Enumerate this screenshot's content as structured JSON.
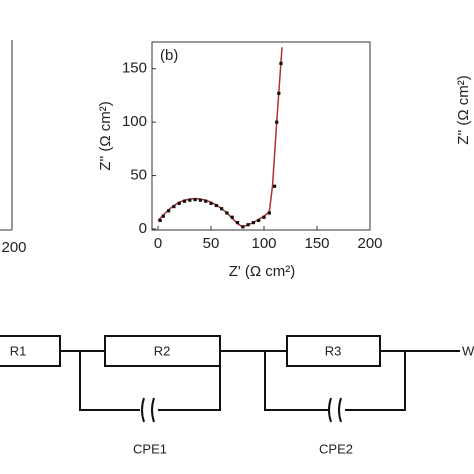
{
  "chart_data": {
    "type": "scatter",
    "panel_label": "(b)",
    "x_label": "Z' (Ω cm²)",
    "y_label": "Z'' (Ω cm²)",
    "xlim": [
      0,
      200
    ],
    "ylim": [
      0,
      175
    ],
    "xticks": [
      0,
      50,
      100,
      150,
      200
    ],
    "yticks": [
      0,
      50,
      100,
      150
    ],
    "points": {
      "color": "#111111",
      "x": [
        2,
        5,
        10,
        15,
        20,
        25,
        30,
        35,
        40,
        45,
        50,
        55,
        60,
        65,
        70,
        75,
        80,
        85,
        90,
        95,
        100,
        105,
        110,
        112,
        114,
        116
      ],
      "y": [
        8,
        12,
        17,
        21,
        24,
        26,
        27,
        27.5,
        27,
        26,
        24,
        22,
        19,
        15,
        11,
        6,
        2,
        4,
        6,
        8,
        11,
        15,
        40,
        100,
        127,
        155
      ]
    },
    "fit": {
      "color": "#b03030",
      "x": [
        0,
        5,
        10,
        15,
        20,
        25,
        30,
        35,
        40,
        45,
        50,
        55,
        60,
        65,
        70,
        75,
        80,
        85,
        90,
        95,
        100,
        105,
        108,
        112,
        117
      ],
      "y": [
        8,
        13,
        18,
        22,
        25,
        27,
        28,
        28.5,
        28,
        27,
        25,
        22.5,
        19,
        15,
        10,
        5,
        2,
        4,
        6,
        9,
        12,
        16,
        40,
        100,
        170
      ]
    }
  },
  "left_panel": {
    "xtick": 200
  },
  "right_panel": {
    "y_label": "Z'' (Ω cm²)"
  },
  "circuit": {
    "resistors": [
      "R1",
      "R2",
      "R3"
    ],
    "cpes": [
      "CPE1",
      "CPE2"
    ],
    "end": "W"
  }
}
